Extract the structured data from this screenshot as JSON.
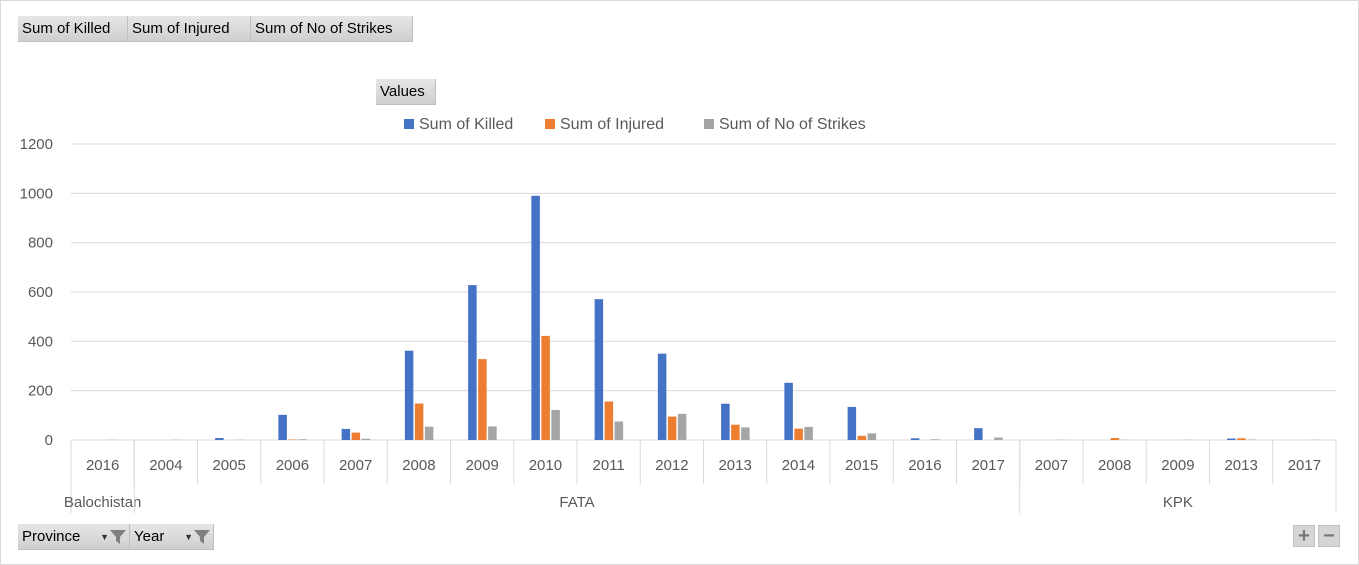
{
  "chart_data": {
    "type": "bar",
    "series": [
      {
        "name": "Sum of Killed",
        "color": "#4472C4",
        "values": [
          0,
          0,
          8,
          102,
          45,
          362,
          628,
          990,
          571,
          350,
          147,
          232,
          134,
          7,
          48,
          0,
          0,
          0,
          6,
          0
        ]
      },
      {
        "name": "Sum of Injured",
        "color": "#ED7D31",
        "values": [
          0,
          0,
          0,
          2,
          30,
          148,
          328,
          422,
          156,
          95,
          62,
          46,
          17,
          0,
          0,
          0,
          8,
          0,
          7,
          0
        ]
      },
      {
        "name": "Sum of No of Strikes",
        "color": "#A5A5A5",
        "values": [
          1,
          1,
          1,
          3,
          5,
          54,
          55,
          122,
          75,
          106,
          51,
          53,
          27,
          3,
          10,
          1,
          1,
          1,
          2,
          1
        ]
      }
    ],
    "categories": [
      "2016",
      "2004",
      "2005",
      "2006",
      "2007",
      "2008",
      "2009",
      "2010",
      "2011",
      "2012",
      "2013",
      "2014",
      "2015",
      "2016",
      "2017",
      "2007",
      "2008",
      "2009",
      "2013",
      "2017"
    ],
    "groups": [
      {
        "label": "Balochistan",
        "count": 1
      },
      {
        "label": "FATA",
        "count": 14
      },
      {
        "label": "KPK",
        "count": 5
      }
    ],
    "yticks": [
      "0",
      "200",
      "400",
      "600",
      "800",
      "1000",
      "1200"
    ],
    "ylim": [
      0,
      1200
    ],
    "grid": true,
    "legend_position": "top"
  },
  "pivot": {
    "value_fields": [
      "Sum of Killed",
      "Sum of Injured",
      "Sum of No of Strikes"
    ],
    "values_label": "Values",
    "axis_fields": [
      "Province",
      "Year"
    ],
    "zoom_in": "+",
    "zoom_out": "−"
  }
}
